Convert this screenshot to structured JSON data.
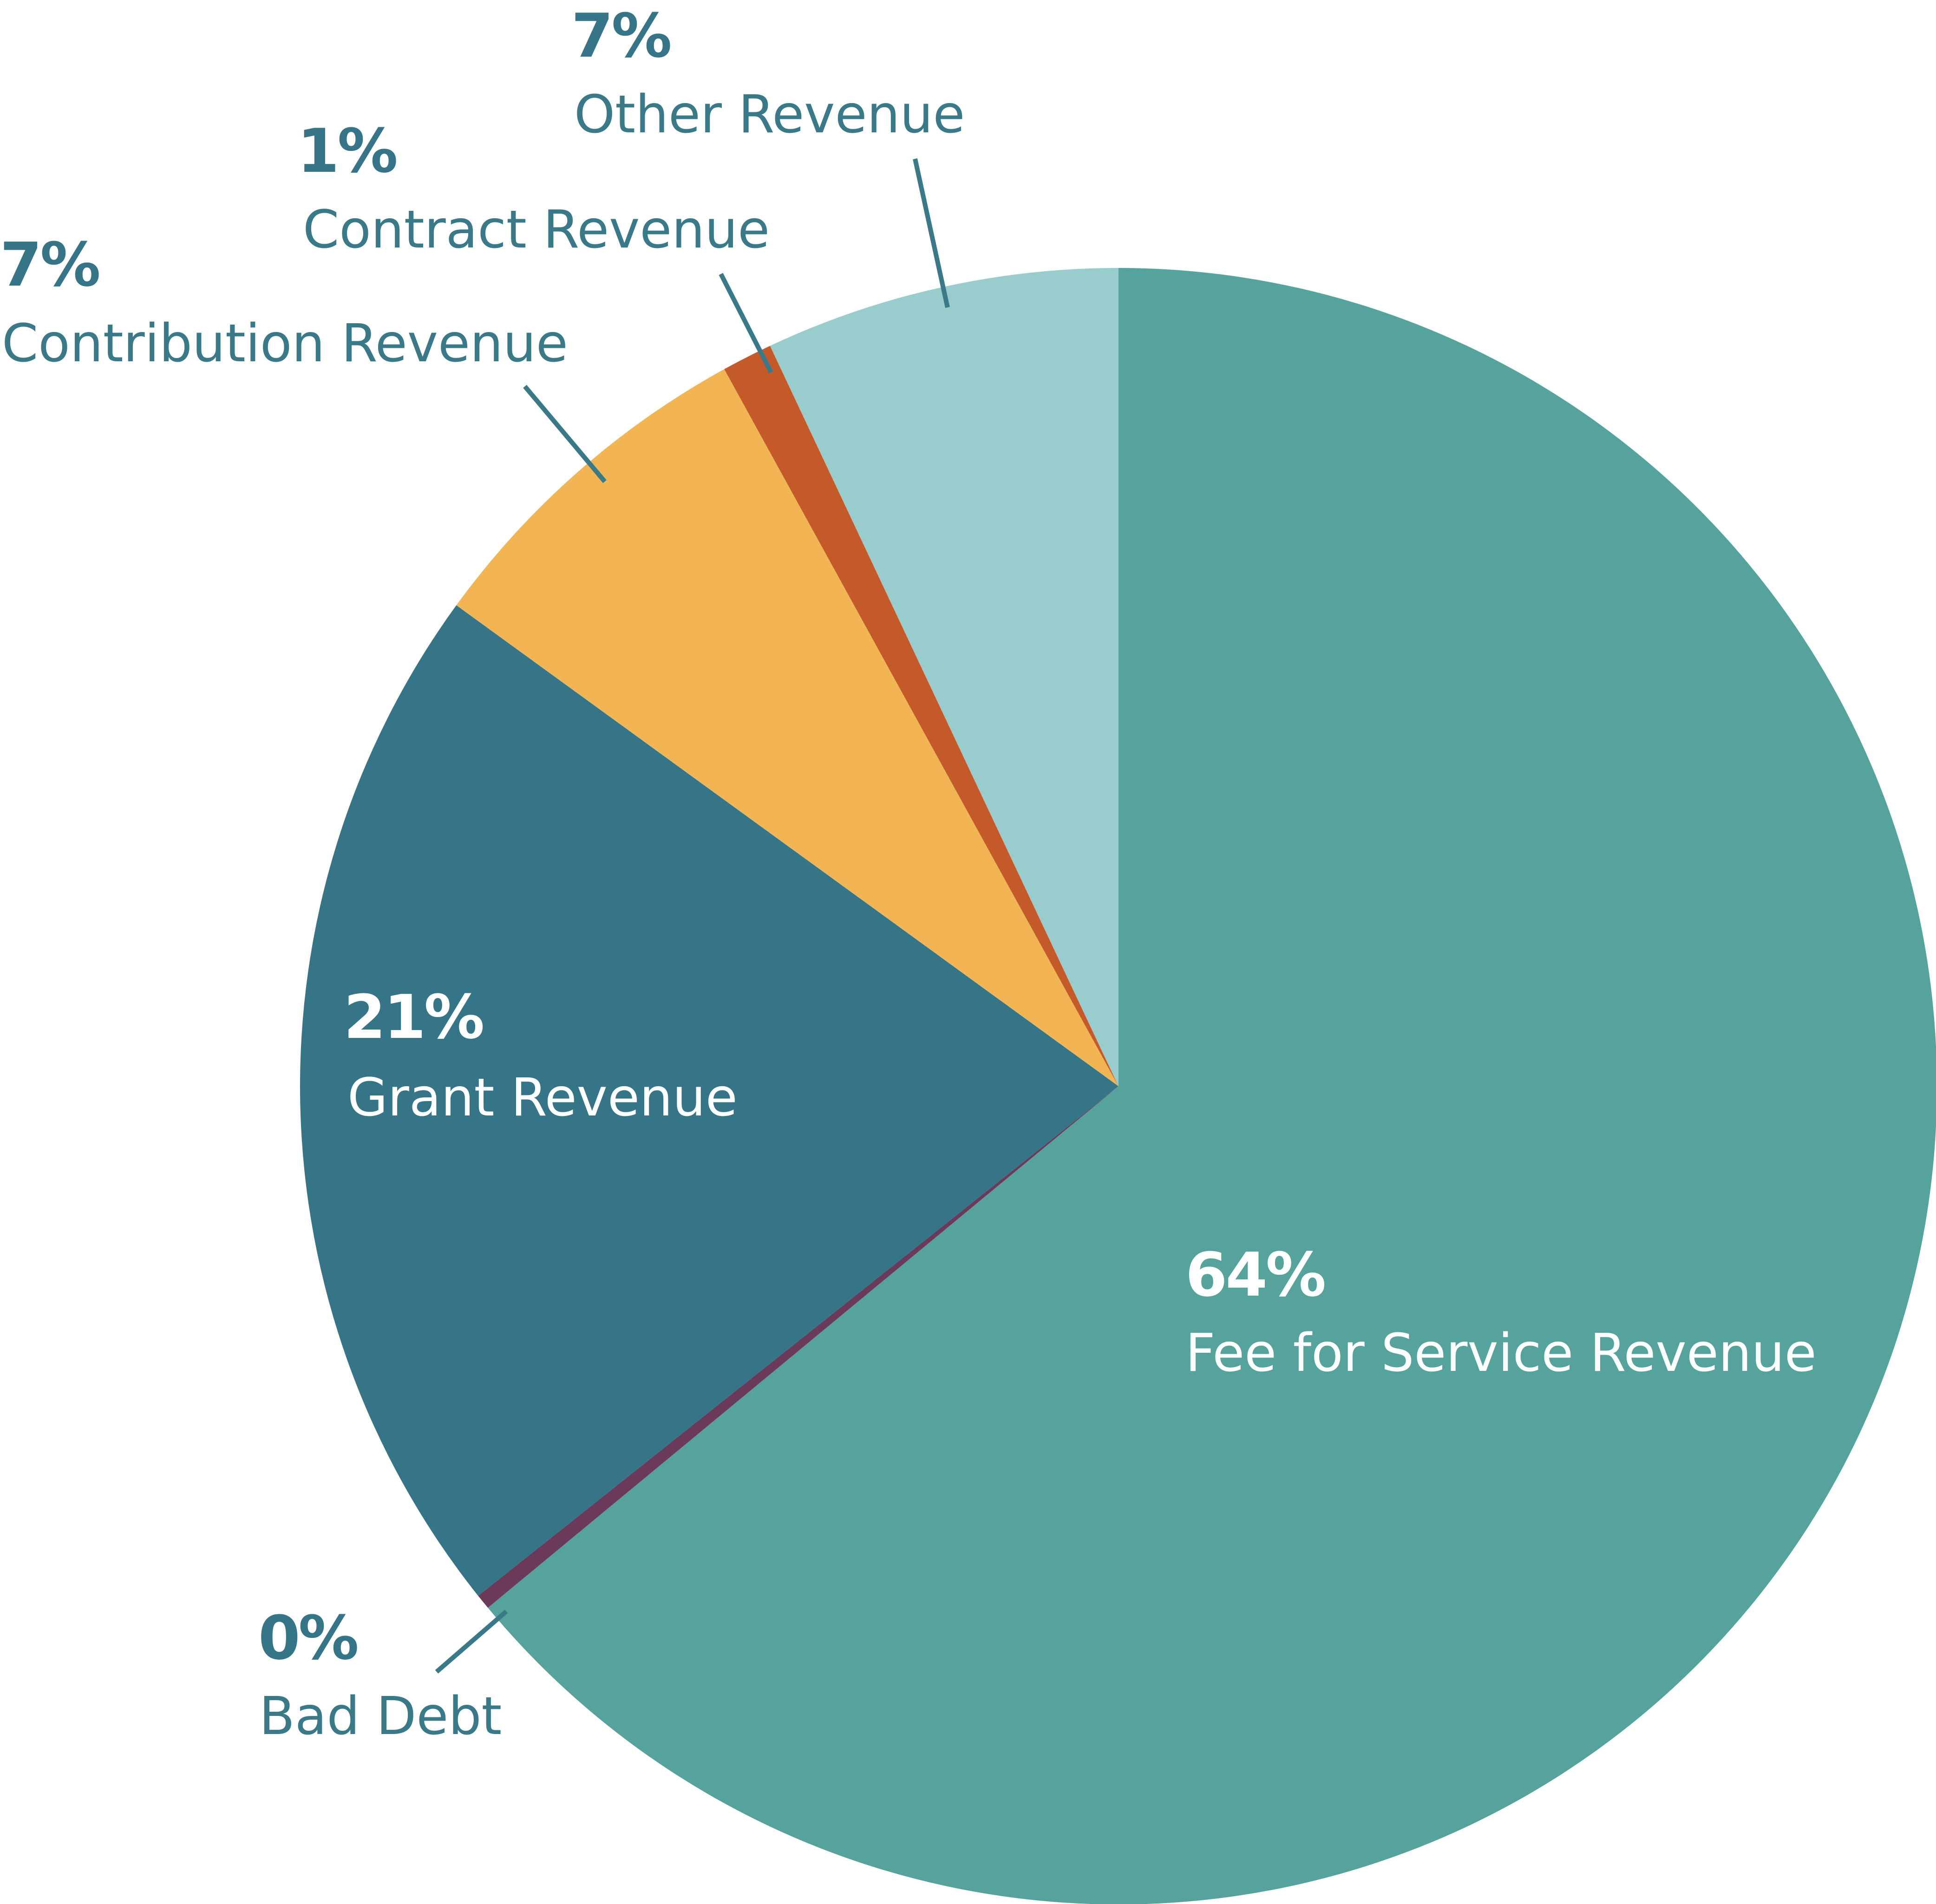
{
  "chart_data": {
    "type": "pie",
    "title": "",
    "start": "12 o'clock",
    "direction": "clockwise",
    "slices": [
      {
        "label": "Fee for Service Revenue",
        "value": 64,
        "percent_label": "64%",
        "color": "#55a39c"
      },
      {
        "label": "Bad Debt",
        "value": 0.3,
        "percent_label": "0%",
        "color": "#6b3a5b"
      },
      {
        "label": "Grant Revenue",
        "value": 20.7,
        "percent_label": "21%",
        "color": "#367587"
      },
      {
        "label": "Contribution Revenue",
        "value": 7,
        "percent_label": "7%",
        "color": "#f3b554"
      },
      {
        "label": "Contract Revenue",
        "value": 1,
        "percent_label": "1%",
        "color": "#c45a2a"
      },
      {
        "label": "Other Revenue",
        "value": 7,
        "percent_label": "7%",
        "color": "#99cccc"
      }
    ]
  },
  "colors": {
    "label_inside": "#ffffff",
    "label_outside": "#3a7a88",
    "label_outside_bold": "#367587",
    "leader_line": "#3a7a88"
  }
}
